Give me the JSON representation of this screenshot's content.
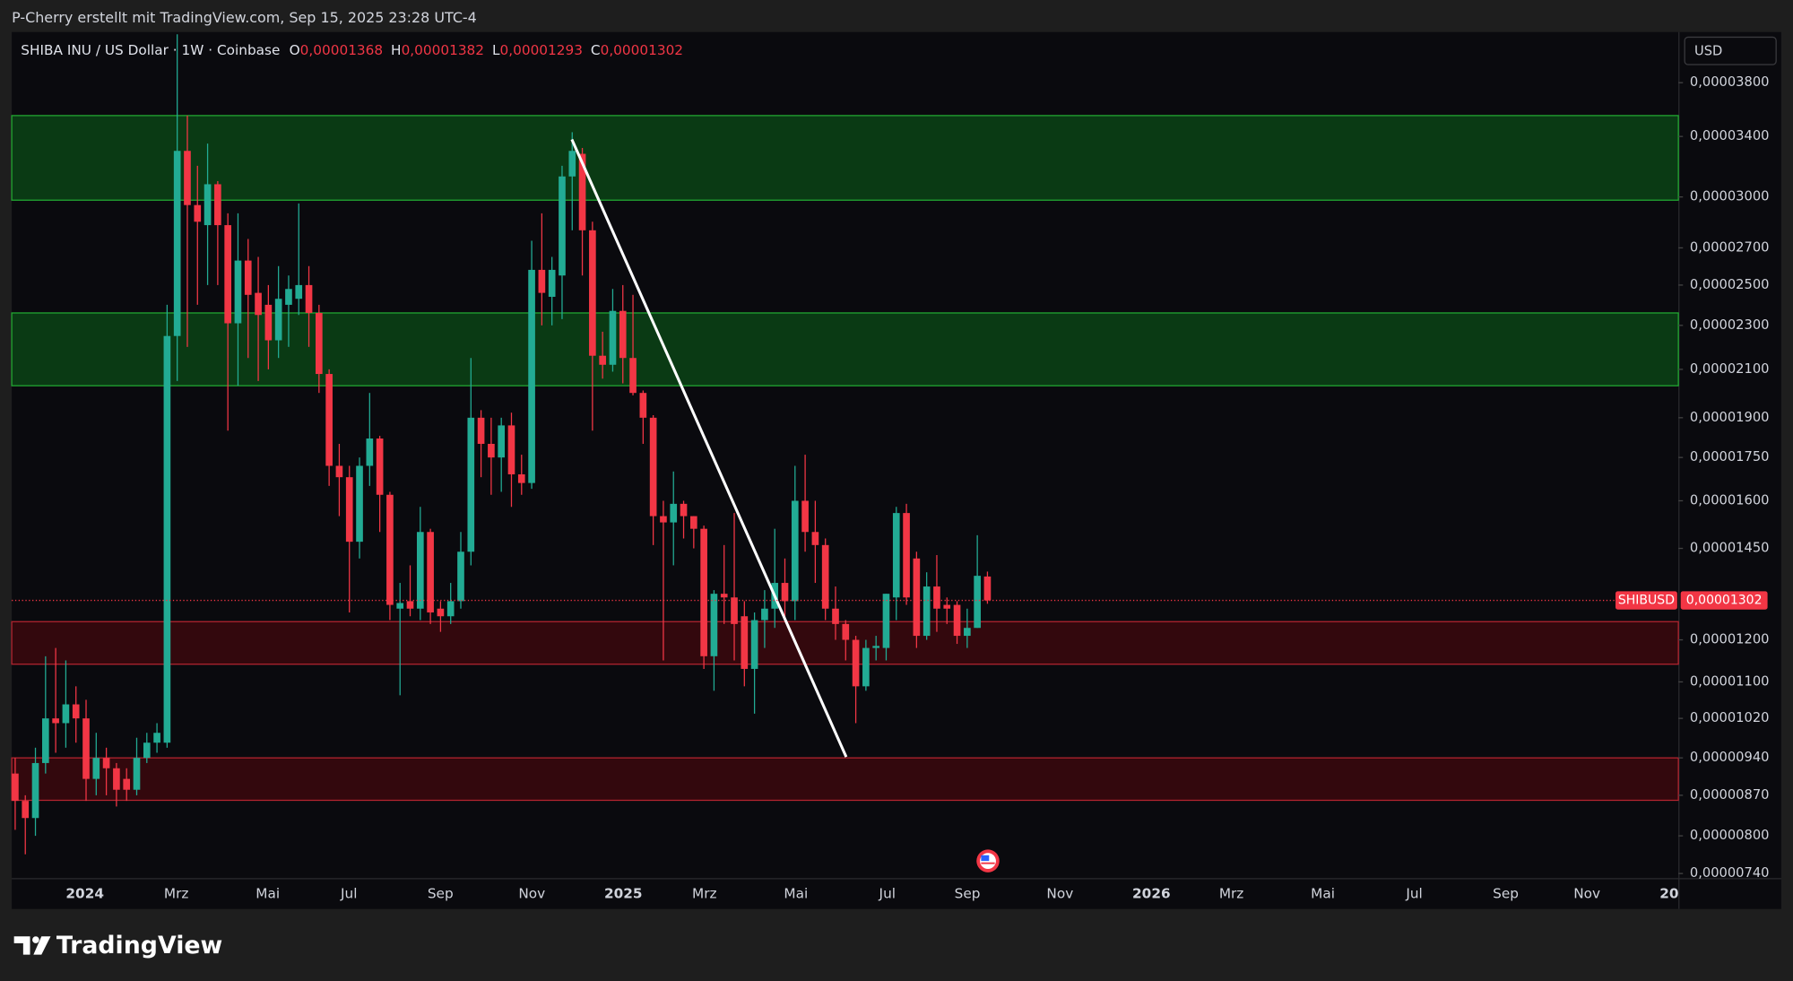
{
  "header": {
    "credit": "P-Cherry erstellt mit TradingView.com, Sep 15, 2025 23:28 UTC-4",
    "instrument": "SHIBA INU / US Dollar · 1W · Coinbase",
    "currency": "USD"
  },
  "chart_data": {
    "type": "candlestick",
    "log_scale": true,
    "grid": false,
    "up_color": "#22ab94",
    "down_color": "#f23645",
    "legend_values": [
      {
        "key": "O",
        "value": 1.368e-05,
        "label": "0,00001368"
      },
      {
        "key": "H",
        "value": 1.382e-05,
        "label": "0,00001382"
      },
      {
        "key": "L",
        "value": 1.293e-05,
        "label": "0,00001293"
      },
      {
        "key": "C",
        "value": 1.302e-05,
        "label": "0,00001302"
      }
    ],
    "last_price": {
      "symbol": "SHIBUSD",
      "value": 1.302e-05,
      "label": "0,00001302"
    },
    "ylim": [
      7.33e-06,
      4.22e-05
    ],
    "yticks": [
      {
        "value": 3.8e-05,
        "label": "0,00003800"
      },
      {
        "value": 3.4e-05,
        "label": "0,00003400"
      },
      {
        "value": 3e-05,
        "label": "0,00003000"
      },
      {
        "value": 2.7e-05,
        "label": "0,00002700"
      },
      {
        "value": 2.5e-05,
        "label": "0,00002500"
      },
      {
        "value": 2.3e-05,
        "label": "0,00002300"
      },
      {
        "value": 2.1e-05,
        "label": "0,00002100"
      },
      {
        "value": 1.9e-05,
        "label": "0,00001900"
      },
      {
        "value": 1.75e-05,
        "label": "0,00001750"
      },
      {
        "value": 1.6e-05,
        "label": "0,00001600"
      },
      {
        "value": 1.45e-05,
        "label": "0,00001450"
      },
      {
        "value": 1.2e-05,
        "label": "0,00001200"
      },
      {
        "value": 1.1e-05,
        "label": "0,00001100"
      },
      {
        "value": 1.02e-05,
        "label": "0,00001020"
      },
      {
        "value": 9.4e-06,
        "label": "0,00000940"
      },
      {
        "value": 8.7e-06,
        "label": "0,00000870"
      },
      {
        "value": 8e-06,
        "label": "0,00000800"
      },
      {
        "value": 7.4e-06,
        "label": "0,00000740"
      }
    ],
    "xtick_labels": [
      "2024",
      "Mrz",
      "Mai",
      "Jul",
      "Sep",
      "Nov",
      "2025",
      "Mrz",
      "Mai",
      "Jul",
      "Sep",
      "Nov",
      "2026",
      "Mrz",
      "Mai",
      "Jul",
      "Sep",
      "Nov",
      "20"
    ],
    "zones": [
      {
        "top": 3.55e-05,
        "bottom": 2.98e-05,
        "color": "#0a3a14",
        "border": "#22a832"
      },
      {
        "top": 2.36e-05,
        "bottom": 2.03e-05,
        "color": "#0a3a14",
        "border": "#22a832"
      },
      {
        "top": 1.246e-05,
        "bottom": 1.141e-05,
        "color": "#33080d",
        "border": "#b3242f"
      },
      {
        "top": 9.4e-06,
        "bottom": 8.61e-06,
        "color": "#33080d",
        "border": "#b3242f"
      }
    ],
    "open": [
      9.1e-06,
      8.6e-06,
      8.3e-06,
      9.3e-06,
      1.02e-05,
      1.01e-05,
      1.05e-05,
      1.02e-05,
      9e-06,
      9.4e-06,
      9.2e-06,
      9e-06,
      8.8e-06,
      9.4e-06,
      9.7e-06,
      9.7e-06,
      2.25e-05,
      3.3e-05,
      2.95e-05,
      2.83e-05,
      3.08e-05,
      2.83e-05,
      2.31e-05,
      2.63e-05,
      2.46e-05,
      2.4e-05,
      2.23e-05,
      2.4e-05,
      2.43e-05,
      2.5e-05,
      2.36e-05,
      2.08e-05,
      1.72e-05,
      1.68e-05,
      1.47e-05,
      1.72e-05,
      1.82e-05,
      1.62e-05,
      1.28e-05,
      1.3e-05,
      1.28e-05,
      1.5e-05,
      1.28e-05,
      1.26e-05,
      1.3e-05,
      1.44e-05,
      1.9e-05,
      1.8e-05,
      1.75e-05,
      1.87e-05,
      1.69e-05,
      1.66e-05,
      2.58e-05,
      2.44e-05,
      2.55e-05,
      3.13e-05,
      3.28e-05,
      2.8e-05,
      2.16e-05,
      2.12e-05,
      2.37e-05,
      2.15e-05,
      2e-05,
      1.9e-05,
      1.55e-05,
      1.53e-05,
      1.59e-05,
      1.55e-05,
      1.51e-05,
      1.16e-05,
      1.32e-05,
      1.31e-05,
      1.26e-05,
      1.13e-05,
      1.25e-05,
      1.28e-05,
      1.35e-05,
      1.3e-05,
      1.6e-05,
      1.5e-05,
      1.46e-05,
      1.28e-05,
      1.24e-05,
      1.2e-05,
      1.09e-05,
      1.18e-05,
      1.18e-05,
      1.31e-05,
      1.56e-05,
      1.42e-05,
      1.21e-05,
      1.34e-05,
      1.29e-05,
      1.29e-05,
      1.21e-05,
      1.23e-05,
      1.368e-05
    ],
    "high": [
      9.4e-06,
      8.7e-06,
      9.6e-06,
      1.16e-05,
      1.18e-05,
      1.15e-05,
      1.09e-05,
      1.06e-05,
      9.9e-06,
      9.6e-06,
      9.3e-06,
      9.2e-06,
      9.8e-06,
      9.9e-06,
      1.01e-05,
      2.4e-05,
      4.2e-05,
      3.55e-05,
      3.2e-05,
      3.35e-05,
      3.1e-05,
      2.9e-05,
      2.9e-05,
      2.75e-05,
      2.65e-05,
      2.5e-05,
      2.6e-05,
      2.55e-05,
      2.96e-05,
      2.6e-05,
      2.4e-05,
      2.1e-05,
      1.8e-05,
      1.72e-05,
      1.75e-05,
      2e-05,
      1.83e-05,
      1.63e-05,
      1.35e-05,
      1.4e-05,
      1.58e-05,
      1.51e-05,
      1.3e-05,
      1.35e-05,
      1.5e-05,
      2.15e-05,
      1.93e-05,
      1.9e-05,
      1.9e-05,
      1.92e-05,
      1.76e-05,
      2.74e-05,
      2.9e-05,
      2.65e-05,
      3.2e-05,
      3.43e-05,
      3.32e-05,
      2.85e-05,
      2.27e-05,
      2.48e-05,
      2.5e-05,
      2.45e-05,
      2.01e-05,
      1.91e-05,
      1.6e-05,
      1.7e-05,
      1.6e-05,
      1.55e-05,
      1.52e-05,
      1.33e-05,
      1.46e-05,
      1.56e-05,
      1.3e-05,
      1.27e-05,
      1.33e-05,
      1.51e-05,
      1.42e-05,
      1.72e-05,
      1.76e-05,
      1.6e-05,
      1.48e-05,
      1.34e-05,
      1.25e-05,
      1.21e-05,
      1.2e-05,
      1.21e-05,
      1.32e-05,
      1.58e-05,
      1.59e-05,
      1.44e-05,
      1.38e-05,
      1.43e-05,
      1.31e-05,
      1.3e-05,
      1.28e-05,
      1.49e-05,
      1.382e-05
    ],
    "low": [
      8.1e-06,
      7.7e-06,
      8e-06,
      9.1e-06,
      9.5e-06,
      9.6e-06,
      9.7e-06,
      8.6e-06,
      8.7e-06,
      8.7e-06,
      8.5e-06,
      8.6e-06,
      8.7e-06,
      9.3e-06,
      9.5e-06,
      9.6e-06,
      2.05e-05,
      2.2e-05,
      2.4e-05,
      2.5e-05,
      2.5e-05,
      1.85e-05,
      2.03e-05,
      2.15e-05,
      2.05e-05,
      2.1e-05,
      2.15e-05,
      2.2e-05,
      2.35e-05,
      2.2e-05,
      2e-05,
      1.65e-05,
      1.55e-05,
      1.27e-05,
      1.42e-05,
      1.65e-05,
      1.5e-05,
      1.25e-05,
      1.07e-05,
      1.26e-05,
      1.25e-05,
      1.24e-05,
      1.22e-05,
      1.24e-05,
      1.28e-05,
      1.4e-05,
      1.68e-05,
      1.62e-05,
      1.63e-05,
      1.58e-05,
      1.62e-05,
      1.64e-05,
      2.3e-05,
      2.3e-05,
      2.33e-05,
      2.8e-05,
      2.55e-05,
      1.85e-05,
      2.06e-05,
      2.09e-05,
      2.04e-05,
      1.99e-05,
      1.8e-05,
      1.46e-05,
      1.15e-05,
      1.4e-05,
      1.48e-05,
      1.45e-05,
      1.13e-05,
      1.08e-05,
      1.24e-05,
      1.15e-05,
      1.09e-05,
      1.03e-05,
      1.18e-05,
      1.23e-05,
      1.25e-05,
      1.25e-05,
      1.44e-05,
      1.35e-05,
      1.25e-05,
      1.2e-05,
      1.15e-05,
      1.01e-05,
      1.08e-05,
      1.15e-05,
      1.15e-05,
      1.25e-05,
      1.29e-05,
      1.18e-05,
      1.2e-05,
      1.22e-05,
      1.24e-05,
      1.19e-05,
      1.18e-05,
      1.23e-05,
      1.293e-05
    ],
    "close": [
      8.6e-06,
      8.3e-06,
      9.3e-06,
      1.02e-05,
      1.01e-05,
      1.05e-05,
      1.02e-05,
      9e-06,
      9.4e-06,
      9.2e-06,
      8.8e-06,
      8.8e-06,
      9.4e-06,
      9.7e-06,
      9.9e-06,
      2.25e-05,
      3.3e-05,
      2.95e-05,
      2.85e-05,
      3.08e-05,
      2.83e-05,
      2.31e-05,
      2.63e-05,
      2.45e-05,
      2.35e-05,
      2.23e-05,
      2.43e-05,
      2.48e-05,
      2.5e-05,
      2.36e-05,
      2.08e-05,
      1.72e-05,
      1.68e-05,
      1.47e-05,
      1.72e-05,
      1.82e-05,
      1.62e-05,
      1.29e-05,
      1.295e-05,
      1.28e-05,
      1.5e-05,
      1.27e-05,
      1.26e-05,
      1.3e-05,
      1.44e-05,
      1.9e-05,
      1.8e-05,
      1.75e-05,
      1.87e-05,
      1.69e-05,
      1.66e-05,
      2.58e-05,
      2.46e-05,
      2.58e-05,
      3.13e-05,
      3.3e-05,
      2.8e-05,
      2.16e-05,
      2.12e-05,
      2.37e-05,
      2.15e-05,
      2e-05,
      1.9e-05,
      1.55e-05,
      1.53e-05,
      1.59e-05,
      1.55e-05,
      1.51e-05,
      1.16e-05,
      1.32e-05,
      1.31e-05,
      1.24e-05,
      1.13e-05,
      1.25e-05,
      1.28e-05,
      1.35e-05,
      1.3e-05,
      1.6e-05,
      1.5e-05,
      1.46e-05,
      1.28e-05,
      1.24e-05,
      1.2e-05,
      1.09e-05,
      1.18e-05,
      1.185e-05,
      1.32e-05,
      1.56e-05,
      1.31e-05,
      1.21e-05,
      1.34e-05,
      1.28e-05,
      1.28e-05,
      1.21e-05,
      1.23e-05,
      1.37e-05,
      1.302e-05
    ]
  },
  "footer": {
    "brand": "TradingView"
  }
}
